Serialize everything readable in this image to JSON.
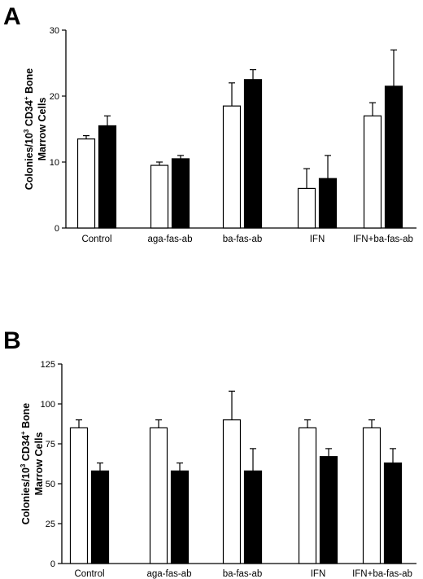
{
  "chart_data": [
    {
      "panel": "A",
      "type": "bar",
      "categories": [
        "Control",
        "aga-fas-ab",
        "ba-fas-ab",
        "IFN",
        "IFN+ba-fas-ab"
      ],
      "ylabel": {
        "line1_a": "Colonies/10",
        "line1_sup1": "3",
        "line1_b": " CD34",
        "line1_sup2": "+",
        "line1_c": " Bone",
        "line2": "Marrow Cells"
      },
      "ylim": [
        0,
        30
      ],
      "yticks": [
        0,
        10,
        20,
        30
      ],
      "series": [
        {
          "fill": "#ffffff",
          "values": [
            13.5,
            9.5,
            18.5,
            6.0,
            17.0
          ],
          "errors": [
            0.5,
            0.5,
            3.5,
            3.0,
            2.0
          ]
        },
        {
          "fill": "#000000",
          "values": [
            15.5,
            10.5,
            22.5,
            7.5,
            21.5
          ],
          "errors": [
            1.5,
            0.5,
            1.5,
            3.5,
            5.5
          ]
        }
      ]
    },
    {
      "panel": "B",
      "type": "bar",
      "categories": [
        "Control",
        "aga-fas-ab",
        "ba-fas-ab",
        "IFN",
        "IFN+ba-fas-ab"
      ],
      "ylabel": {
        "line1_a": "Colonies/10",
        "line1_sup1": "3",
        "line1_b": " CD34",
        "line1_sup2": "+",
        "line1_c": " Bone",
        "line2": "Marrow Cells"
      },
      "ylim": [
        0,
        125
      ],
      "yticks": [
        0,
        25,
        50,
        75,
        100,
        125
      ],
      "series": [
        {
          "fill": "#ffffff",
          "values": [
            85,
            85,
            90,
            85,
            85
          ],
          "errors": [
            5,
            5,
            18,
            5,
            5
          ]
        },
        {
          "fill": "#000000",
          "values": [
            58,
            58,
            58,
            67,
            63
          ],
          "errors": [
            5,
            5,
            14,
            5,
            9
          ]
        }
      ]
    }
  ]
}
